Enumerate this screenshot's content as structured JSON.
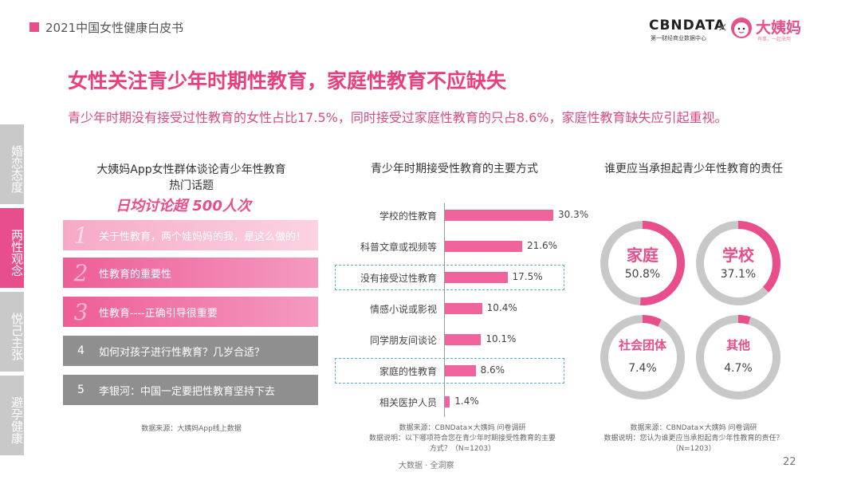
{
  "header": {
    "report_title": "2021中国女性健康白皮书",
    "brand_cbn": "CBNDATA",
    "brand_cbn_sub": "第一财经商业数据中心",
    "brand_x": "×",
    "brand_dym": "大姨妈",
    "brand_dym_sub": "有事，一起来用"
  },
  "headline": "女性关注青少年时期性教育，家庭性教育不应缺失",
  "subline": "青少年时期没有接受过性教育的女性占比17.5%，同时接受过家庭性教育的只占8.6%，家庭性教育缺失应引起重视。",
  "side_nav": [
    {
      "label": "婚恋态度",
      "active": false
    },
    {
      "label": "两性观念",
      "active": true
    },
    {
      "label": "悦己主张",
      "active": false
    },
    {
      "label": "避孕健康",
      "active": false
    }
  ],
  "left_panel": {
    "title_line1": "大姨妈App女性群体谈论青少年性教育",
    "title_line2": "热门话题",
    "banner": "日均讨论超 500人次",
    "topics": [
      {
        "num": "1",
        "text": "关于性教育，两个娃妈妈的我，是这么做的！"
      },
      {
        "num": "2",
        "text": "性教育的重要性"
      },
      {
        "num": "3",
        "text": "性教育----正确引导很重要"
      },
      {
        "num": "4",
        "text": "如何对孩子进行性教育？几岁合适？"
      },
      {
        "num": "5",
        "text": "李银河：中国一定要把性教育坚持下去"
      }
    ],
    "source": "数据来源：大姨妈App线上数据"
  },
  "middle_panel": {
    "source_line1": "数据来源：CBNData×大姨妈 问卷调研",
    "source_line2": "数据说明：以下哪项符合您在青少年时期接受性教育的主要",
    "source_line3": "方式？（N=1203）"
  },
  "right_panel": {
    "title": "谁更应当承担起青少年性教育的责任",
    "source_line1": "数据来源：CBNData×大姨妈 问卷调研",
    "source_line2": "数据说明：您认为谁更应当承担起青少年性教育的责任？",
    "source_line3": "（N=1203）"
  },
  "footer": {
    "page": "22",
    "center": "大数据 · 全洞察"
  },
  "colors": {
    "accent": "#e84e8b",
    "bar": "#f0639d",
    "ring_track": "#c8c8c8",
    "highlight_box": "#5ab3c9"
  },
  "chart_data": [
    {
      "type": "bar",
      "orientation": "horizontal",
      "title": "青少年时期接受性教育的主要方式",
      "categories": [
        "学校的性教育",
        "科普文章或视频等",
        "没有接受过性教育",
        "情感小说或影视",
        "同学朋友间谈论",
        "家庭的性教育",
        "相关医护人员"
      ],
      "values": [
        30.3,
        21.6,
        17.5,
        10.4,
        10.1,
        8.6,
        1.4
      ],
      "value_labels": [
        "30.3%",
        "21.6%",
        "17.5%",
        "10.4%",
        "10.1%",
        "8.6%",
        "1.4%"
      ],
      "highlighted": [
        "没有接受过性教育",
        "家庭的性教育"
      ],
      "xlim": [
        0,
        30.3
      ],
      "grid": false
    },
    {
      "type": "pie",
      "style": "donut",
      "title": "谁更应当承担起青少年性教育的责任",
      "categories": [
        "家庭",
        "学校",
        "社会团体",
        "其他"
      ],
      "values": [
        50.8,
        37.1,
        7.4,
        4.7
      ],
      "value_labels": [
        "50.8%",
        "37.1%",
        "7.4%",
        "4.7%"
      ]
    }
  ]
}
